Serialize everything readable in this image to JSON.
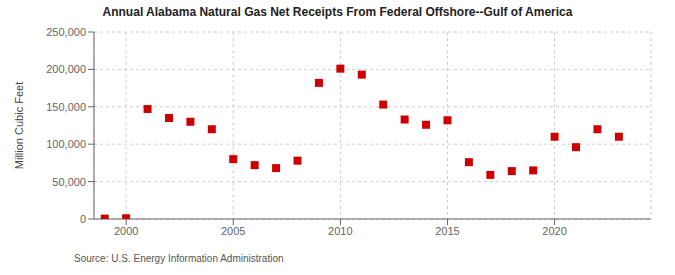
{
  "chart_data": {
    "type": "scatter",
    "title": "Annual Alabama Natural Gas Net Receipts From Federal Offshore--Gulf of America",
    "y_label": "Million Cubic Feet",
    "annotations": [
      "Source: U.S. Energy Information Administration"
    ],
    "x": [
      1999,
      2000,
      2001,
      2002,
      2003,
      2004,
      2005,
      2006,
      2007,
      2008,
      2009,
      2010,
      2011,
      2012,
      2013,
      2014,
      2015,
      2016,
      2017,
      2018,
      2019,
      2020,
      2021,
      2022,
      2023
    ],
    "values": [
      500,
      1000,
      147000,
      135000,
      130000,
      120000,
      80000,
      72000,
      68000,
      78000,
      182000,
      201000,
      193000,
      153000,
      133000,
      126000,
      132000,
      76000,
      59000,
      64000,
      65000,
      110000,
      96000,
      120000,
      110000
    ],
    "color": "#cc0000",
    "marker": "square",
    "xlim": [
      1998.5,
      2024.5
    ],
    "xticks": [
      2000,
      2005,
      2010,
      2015,
      2020
    ],
    "ylim": [
      0,
      250000
    ],
    "yticks": [
      0,
      {
        "value": 50000,
        "label": "50,000"
      },
      {
        "value": 100000,
        "label": "100,000"
      },
      {
        "value": 150000,
        "label": "150,000"
      },
      {
        "value": 200000,
        "label": "200,000"
      },
      {
        "value": 250000,
        "label": "250,000"
      }
    ],
    "grid": true
  }
}
